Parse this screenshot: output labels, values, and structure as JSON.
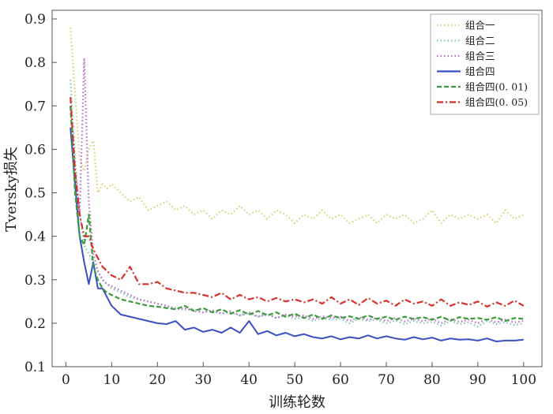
{
  "chart_data": {
    "type": "line",
    "title": "",
    "xlabel": "训练轮数",
    "ylabel": "Tversky损失",
    "xlim": [
      -3,
      104
    ],
    "ylim": [
      0.1,
      0.92
    ],
    "xticks": [
      0,
      10,
      20,
      30,
      40,
      50,
      60,
      70,
      80,
      90,
      100
    ],
    "yticks": [
      0.1,
      0.2,
      0.3,
      0.4,
      0.5,
      0.6,
      0.7,
      0.8,
      0.9
    ],
    "grid": false,
    "legend_position": "top-right",
    "series": [
      {
        "name": "组合一",
        "color": "#d8cf7a",
        "dash": "dotted",
        "x": [
          1,
          2,
          3,
          4,
          5,
          6,
          7,
          8,
          9,
          10,
          12,
          14,
          16,
          18,
          20,
          22,
          24,
          26,
          28,
          30,
          32,
          34,
          36,
          38,
          40,
          42,
          44,
          46,
          48,
          50,
          52,
          54,
          56,
          58,
          60,
          62,
          64,
          66,
          68,
          70,
          72,
          74,
          76,
          78,
          80,
          82,
          84,
          86,
          88,
          90,
          92,
          94,
          96,
          98,
          100
        ],
        "values": [
          0.88,
          0.73,
          0.58,
          0.55,
          0.6,
          0.62,
          0.5,
          0.52,
          0.51,
          0.52,
          0.5,
          0.48,
          0.49,
          0.46,
          0.47,
          0.48,
          0.46,
          0.47,
          0.45,
          0.46,
          0.44,
          0.46,
          0.45,
          0.47,
          0.45,
          0.46,
          0.44,
          0.46,
          0.45,
          0.43,
          0.45,
          0.44,
          0.46,
          0.44,
          0.45,
          0.43,
          0.44,
          0.45,
          0.43,
          0.45,
          0.44,
          0.45,
          0.43,
          0.44,
          0.46,
          0.43,
          0.45,
          0.44,
          0.45,
          0.44,
          0.45,
          0.43,
          0.46,
          0.44,
          0.45
        ]
      },
      {
        "name": "组合二",
        "color": "#7fc7b8",
        "dash": "dotted",
        "x": [
          1,
          2,
          3,
          4,
          5,
          6,
          7,
          8,
          9,
          10,
          12,
          14,
          16,
          18,
          20,
          22,
          24,
          26,
          28,
          30,
          32,
          34,
          36,
          38,
          40,
          42,
          44,
          46,
          48,
          50,
          52,
          54,
          56,
          58,
          60,
          62,
          64,
          66,
          68,
          70,
          72,
          74,
          76,
          78,
          80,
          82,
          84,
          86,
          88,
          90,
          92,
          94,
          96,
          98,
          100
        ],
        "values": [
          0.76,
          0.58,
          0.45,
          0.38,
          0.36,
          0.34,
          0.32,
          0.3,
          0.29,
          0.28,
          0.27,
          0.26,
          0.255,
          0.25,
          0.245,
          0.24,
          0.235,
          0.23,
          0.232,
          0.225,
          0.228,
          0.222,
          0.225,
          0.218,
          0.222,
          0.215,
          0.22,
          0.212,
          0.218,
          0.21,
          0.214,
          0.205,
          0.212,
          0.208,
          0.21,
          0.2,
          0.21,
          0.205,
          0.208,
          0.2,
          0.206,
          0.198,
          0.205,
          0.2,
          0.203,
          0.195,
          0.205,
          0.198,
          0.202,
          0.192,
          0.205,
          0.198,
          0.202,
          0.196,
          0.2
        ]
      },
      {
        "name": "组合三",
        "color": "#b86bc4",
        "dash": "dotted",
        "x": [
          1,
          2,
          3,
          4,
          5,
          6,
          7,
          8,
          9,
          10,
          12,
          14,
          16,
          18,
          20,
          22,
          24,
          26,
          28,
          30,
          32,
          34,
          36,
          38,
          40,
          42,
          44,
          46,
          48,
          50,
          52,
          54,
          56,
          58,
          60,
          62,
          64,
          66,
          68,
          70,
          72,
          74,
          76,
          78,
          80,
          82,
          84,
          86,
          88,
          90,
          92,
          94,
          96,
          98,
          100
        ],
        "values": [
          0.7,
          0.55,
          0.45,
          0.81,
          0.48,
          0.36,
          0.32,
          0.3,
          0.29,
          0.285,
          0.275,
          0.265,
          0.255,
          0.25,
          0.245,
          0.24,
          0.232,
          0.235,
          0.228,
          0.225,
          0.23,
          0.222,
          0.228,
          0.218,
          0.225,
          0.215,
          0.222,
          0.212,
          0.22,
          0.215,
          0.218,
          0.21,
          0.216,
          0.212,
          0.215,
          0.205,
          0.214,
          0.208,
          0.212,
          0.205,
          0.212,
          0.204,
          0.21,
          0.205,
          0.21,
          0.2,
          0.21,
          0.203,
          0.208,
          0.2,
          0.21,
          0.202,
          0.208,
          0.202,
          0.205
        ]
      },
      {
        "name": "组合四",
        "color": "#3a4fc4",
        "dash": "solid",
        "x": [
          1,
          2,
          3,
          4,
          5,
          6,
          7,
          8,
          9,
          10,
          11,
          12,
          14,
          16,
          18,
          20,
          22,
          24,
          26,
          28,
          30,
          32,
          34,
          36,
          38,
          40,
          42,
          44,
          46,
          48,
          50,
          52,
          54,
          56,
          58,
          60,
          62,
          64,
          66,
          68,
          70,
          72,
          74,
          76,
          78,
          80,
          82,
          84,
          86,
          88,
          90,
          92,
          94,
          96,
          98,
          100
        ],
        "values": [
          0.65,
          0.52,
          0.4,
          0.34,
          0.29,
          0.34,
          0.28,
          0.28,
          0.26,
          0.24,
          0.23,
          0.22,
          0.215,
          0.21,
          0.205,
          0.2,
          0.198,
          0.205,
          0.185,
          0.19,
          0.18,
          0.185,
          0.178,
          0.19,
          0.178,
          0.205,
          0.175,
          0.182,
          0.172,
          0.178,
          0.17,
          0.175,
          0.168,
          0.165,
          0.17,
          0.163,
          0.168,
          0.165,
          0.172,
          0.165,
          0.17,
          0.165,
          0.162,
          0.168,
          0.163,
          0.167,
          0.16,
          0.165,
          0.162,
          0.163,
          0.16,
          0.165,
          0.158,
          0.16,
          0.16,
          0.162
        ]
      },
      {
        "name": "组合四(0. 01)",
        "color": "#3a9c3a",
        "dash": "dashed",
        "x": [
          1,
          2,
          3,
          4,
          5,
          6,
          7,
          8,
          9,
          10,
          12,
          14,
          16,
          18,
          20,
          22,
          24,
          26,
          28,
          30,
          32,
          34,
          36,
          38,
          40,
          42,
          44,
          46,
          48,
          50,
          52,
          54,
          56,
          58,
          60,
          62,
          64,
          66,
          68,
          70,
          72,
          74,
          76,
          78,
          80,
          82,
          84,
          86,
          88,
          90,
          92,
          94,
          96,
          98,
          100
        ],
        "values": [
          0.7,
          0.5,
          0.4,
          0.38,
          0.45,
          0.33,
          0.3,
          0.28,
          0.27,
          0.265,
          0.255,
          0.25,
          0.245,
          0.24,
          0.238,
          0.235,
          0.232,
          0.24,
          0.228,
          0.235,
          0.225,
          0.232,
          0.222,
          0.23,
          0.22,
          0.228,
          0.218,
          0.225,
          0.215,
          0.222,
          0.212,
          0.22,
          0.21,
          0.218,
          0.212,
          0.216,
          0.21,
          0.218,
          0.21,
          0.215,
          0.208,
          0.215,
          0.21,
          0.214,
          0.208,
          0.215,
          0.206,
          0.214,
          0.21,
          0.212,
          0.208,
          0.214,
          0.205,
          0.212,
          0.21
        ]
      },
      {
        "name": "组合四(0. 05)",
        "color": "#d6322a",
        "dash": "dashdot",
        "x": [
          1,
          2,
          3,
          4,
          5,
          6,
          7,
          8,
          9,
          10,
          12,
          14,
          16,
          18,
          20,
          22,
          24,
          26,
          28,
          30,
          32,
          34,
          36,
          38,
          40,
          42,
          44,
          46,
          48,
          50,
          52,
          54,
          56,
          58,
          60,
          62,
          64,
          66,
          68,
          70,
          72,
          74,
          76,
          78,
          80,
          82,
          84,
          86,
          88,
          90,
          92,
          94,
          96,
          98,
          100
        ],
        "values": [
          0.72,
          0.55,
          0.45,
          0.4,
          0.4,
          0.37,
          0.35,
          0.33,
          0.32,
          0.31,
          0.3,
          0.33,
          0.29,
          0.29,
          0.295,
          0.28,
          0.275,
          0.27,
          0.27,
          0.265,
          0.26,
          0.27,
          0.255,
          0.265,
          0.255,
          0.26,
          0.25,
          0.258,
          0.25,
          0.255,
          0.248,
          0.255,
          0.245,
          0.26,
          0.245,
          0.255,
          0.242,
          0.258,
          0.245,
          0.252,
          0.24,
          0.255,
          0.245,
          0.25,
          0.24,
          0.255,
          0.24,
          0.248,
          0.242,
          0.25,
          0.238,
          0.248,
          0.24,
          0.252,
          0.24
        ]
      }
    ]
  }
}
